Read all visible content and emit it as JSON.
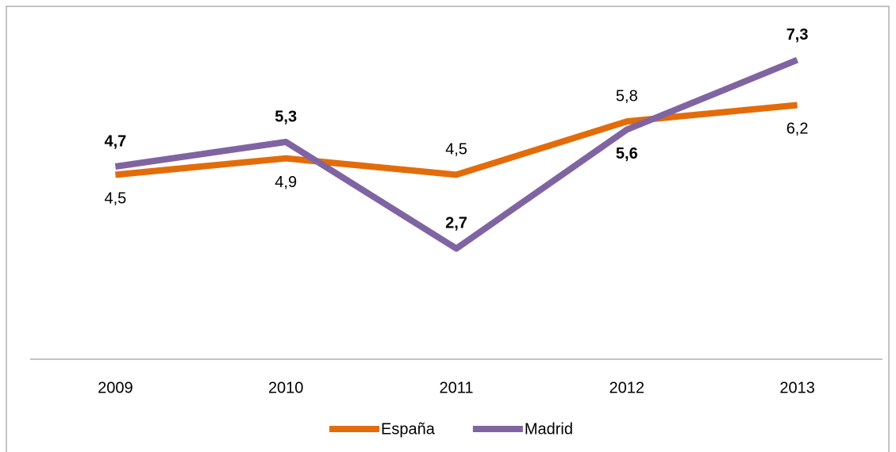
{
  "chart_data": {
    "type": "line",
    "categories": [
      "2009",
      "2010",
      "2011",
      "2012",
      "2013"
    ],
    "series": [
      {
        "name": "España",
        "color": "#e36c0a",
        "values": [
          4.5,
          4.9,
          4.5,
          5.8,
          6.2
        ],
        "value_labels": [
          "4,5",
          "4,9",
          "4,5",
          "5,8",
          "6,2"
        ]
      },
      {
        "name": "Madrid",
        "color": "#8064a2",
        "values": [
          4.7,
          5.3,
          2.7,
          5.6,
          7.3
        ],
        "value_labels": [
          "4,7",
          "5,3",
          "2,7",
          "5,6",
          "7,3"
        ]
      }
    ],
    "legend": "bottom"
  }
}
